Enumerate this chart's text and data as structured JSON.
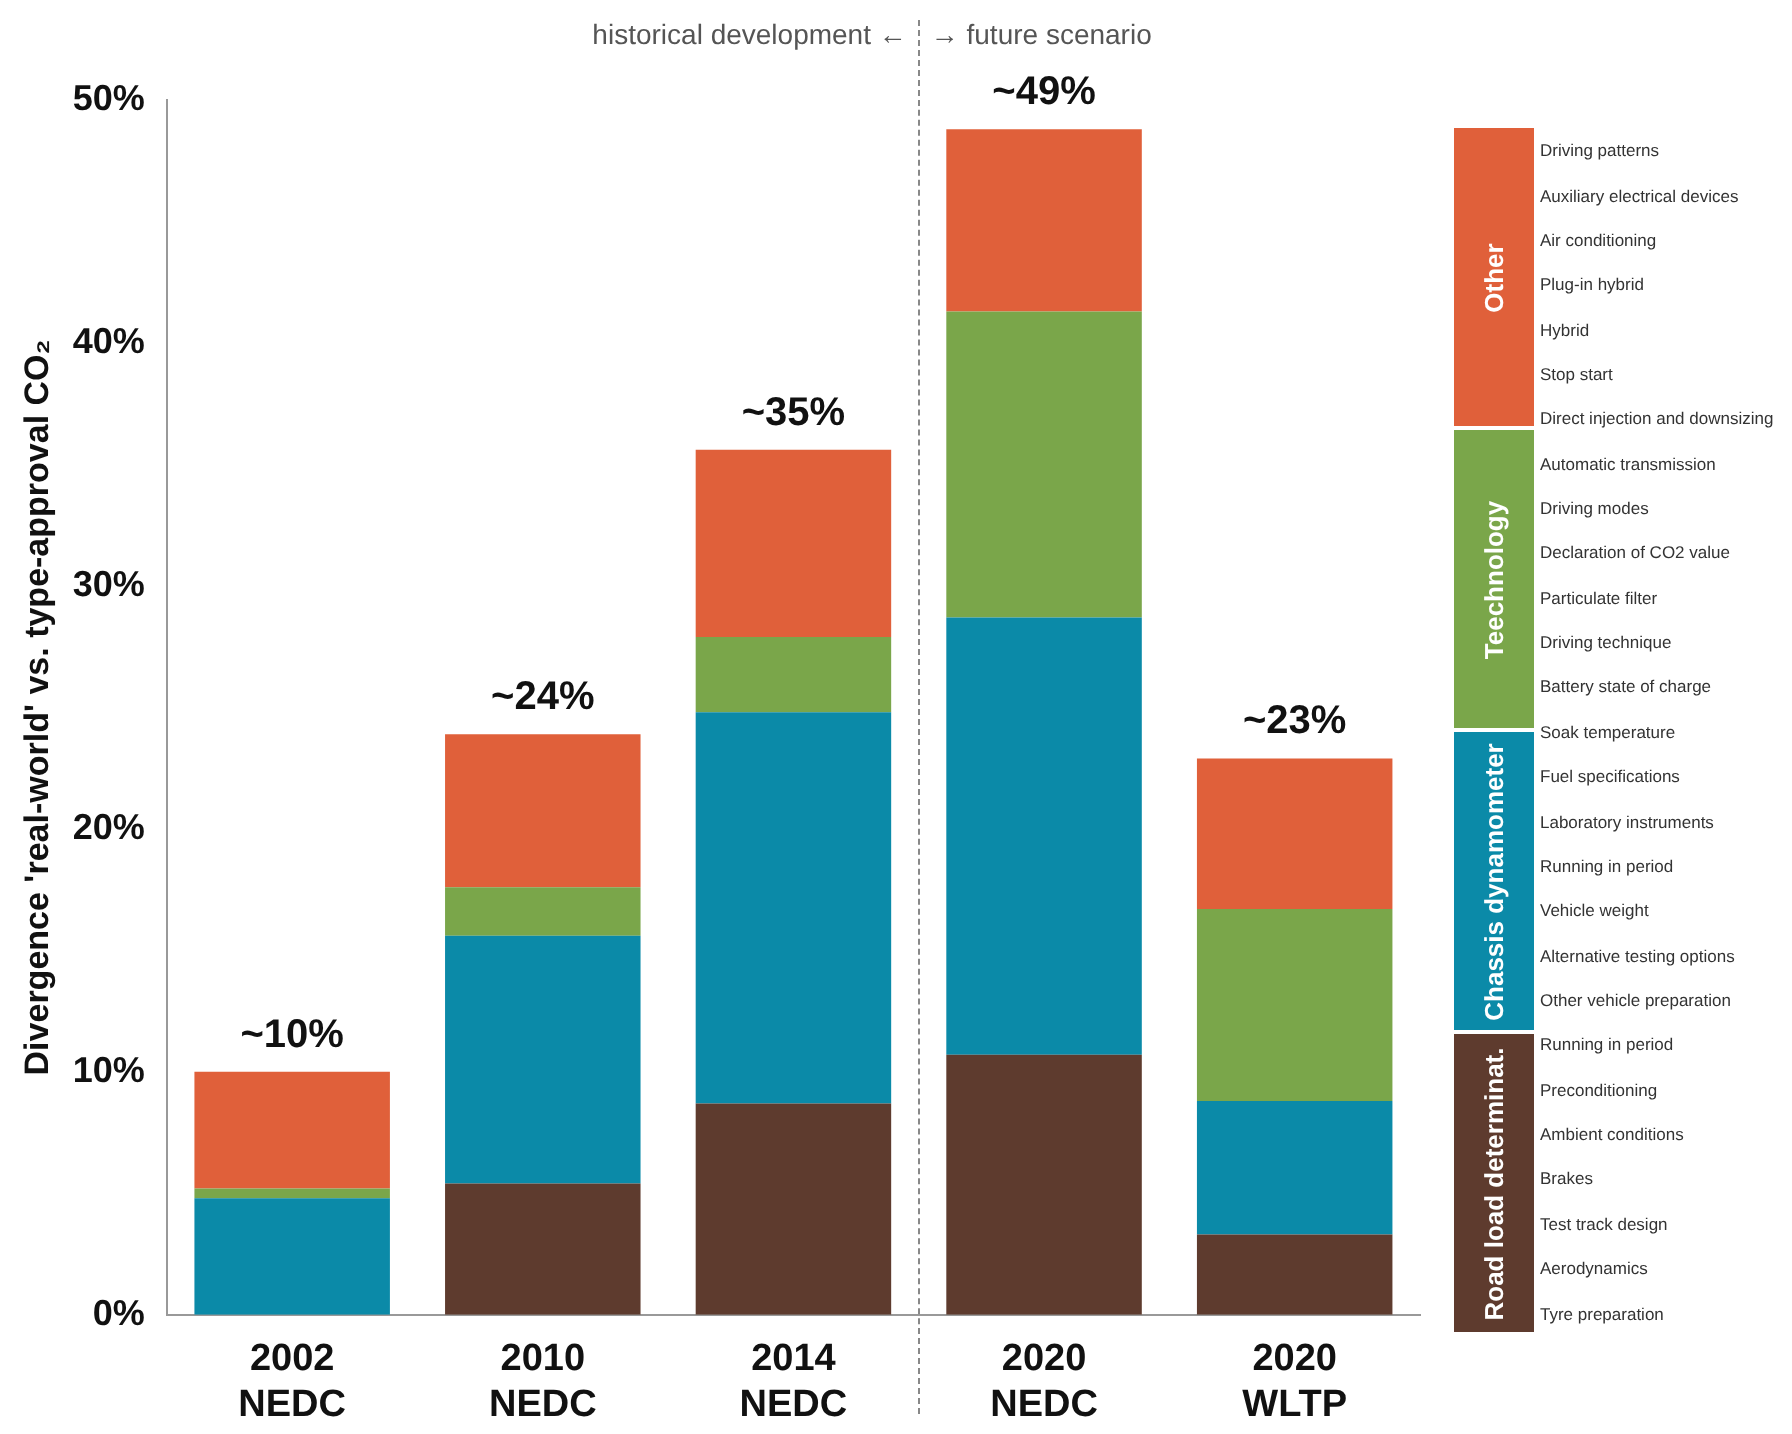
{
  "chart_data": {
    "type": "bar",
    "stacked": true,
    "ylabel": "Divergence 'real-world' vs. type-approval CO₂",
    "categories": [
      "2002 NEDC",
      "2010 NEDC",
      "2014 NEDC",
      "2020 NEDC",
      "2020 WLTP"
    ],
    "series": [
      {
        "name": "Road load determinat.",
        "color": "#5e3b2e",
        "values": [
          0,
          5.4,
          8.7,
          10.7,
          3.3
        ]
      },
      {
        "name": "Chassis dynamometer",
        "color": "#0b8aa8",
        "values": [
          4.8,
          10.2,
          16.1,
          18.0,
          5.5
        ]
      },
      {
        "name": "Teechnology",
        "color": "#7aa64a",
        "values": [
          0.4,
          2.0,
          3.1,
          12.6,
          7.9
        ]
      },
      {
        "name": "Other",
        "color": "#e0603a",
        "values": [
          4.8,
          6.3,
          7.7,
          7.5,
          6.2
        ]
      }
    ],
    "totals": [
      "~10%",
      "~24%",
      "~35%",
      "~49%",
      "~23%"
    ],
    "ylim": [
      0,
      50
    ],
    "yticks": [
      {
        "value": 0,
        "label": "0%"
      },
      {
        "value": 10,
        "label": "10%"
      },
      {
        "value": 20,
        "label": "20%"
      },
      {
        "value": 30,
        "label": "30%"
      },
      {
        "value": 40,
        "label": "40%"
      },
      {
        "value": 50,
        "label": "50%"
      }
    ],
    "annotations": [
      "historical development ←",
      "→ future scenario",
      "Driving patterns",
      "Auxiliary electrical devices",
      "Air conditioning",
      "Plug-in hybrid",
      "Hybrid",
      "Stop start",
      "Direct injection and downsizing",
      "Automatic transmission",
      "Driving modes",
      "Declaration of CO2 value",
      "Particulate filter",
      "Driving technique",
      "Battery state of charge",
      "Soak temperature",
      "Fuel specifications",
      "Laboratory instruments",
      "Running in period",
      "Vehicle weight",
      "Alternative testing options",
      "Other vehicle preparation",
      "Running in period",
      "Preconditioning",
      "Ambient conditions",
      "Brakes",
      "Test track design",
      "Aerodynamics",
      "Tyre preparation"
    ],
    "grid": false,
    "legend": "right"
  }
}
